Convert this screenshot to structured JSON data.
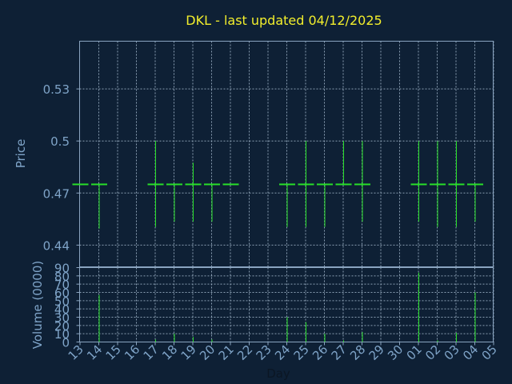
{
  "chart_data": {
    "type": "ohlc",
    "title": "DKL - last updated 04/12/2025",
    "xlabel": "Day",
    "price_panel": {
      "ylabel": "Price",
      "yticks": [
        0.44,
        0.47,
        0.5,
        0.53
      ],
      "ytick_labels": [
        "0.44",
        "0.47",
        "0.5",
        "0.53"
      ],
      "ylim": [
        0.4275,
        0.5575
      ]
    },
    "volume_panel": {
      "ylabel": "Volume (0000)",
      "yticks": [
        0,
        10,
        20,
        30,
        40,
        50,
        60,
        70,
        80,
        90
      ],
      "ylim": [
        0,
        90
      ]
    },
    "x_tick_labels": [
      "13",
      "14",
      "15",
      "16",
      "17",
      "18",
      "19",
      "20",
      "21",
      "22",
      "23",
      "24",
      "25",
      "26",
      "27",
      "28",
      "29",
      "30",
      "01",
      "02",
      "03",
      "04",
      "05"
    ],
    "grid": true,
    "bar_color": "#28e028",
    "candles": [
      {
        "day": "13",
        "open": 0.475,
        "high": 0.475,
        "low": 0.475,
        "close": 0.475,
        "volume": 0
      },
      {
        "day": "14",
        "open": 0.475,
        "high": 0.475,
        "low": 0.4495,
        "close": 0.475,
        "volume": 57
      },
      {
        "day": "17",
        "open": 0.475,
        "high": 0.5,
        "low": 0.4505,
        "close": 0.475,
        "volume": 3
      },
      {
        "day": "18",
        "open": 0.475,
        "high": 0.475,
        "low": 0.4535,
        "close": 0.475,
        "volume": 10
      },
      {
        "day": "19",
        "open": 0.475,
        "high": 0.4875,
        "low": 0.4535,
        "close": 0.475,
        "volume": 6
      },
      {
        "day": "20",
        "open": 0.475,
        "high": 0.475,
        "low": 0.4535,
        "close": 0.475,
        "volume": 3
      },
      {
        "day": "21",
        "open": 0.475,
        "high": 0.475,
        "low": 0.475,
        "close": 0.475,
        "volume": 0
      },
      {
        "day": "24",
        "open": 0.475,
        "high": 0.475,
        "low": 0.4505,
        "close": 0.475,
        "volume": 30
      },
      {
        "day": "25",
        "open": 0.475,
        "high": 0.5,
        "low": 0.4505,
        "close": 0.475,
        "volume": 24
      },
      {
        "day": "26",
        "open": 0.475,
        "high": 0.475,
        "low": 0.4505,
        "close": 0.475,
        "volume": 10
      },
      {
        "day": "27",
        "open": 0.475,
        "high": 0.5,
        "low": 0.475,
        "close": 0.475,
        "volume": 2
      },
      {
        "day": "28",
        "open": 0.475,
        "high": 0.5,
        "low": 0.4535,
        "close": 0.475,
        "volume": 12
      },
      {
        "day": "01",
        "open": 0.475,
        "high": 0.5,
        "low": 0.4535,
        "close": 0.475,
        "volume": 84
      },
      {
        "day": "02",
        "open": 0.475,
        "high": 0.5,
        "low": 0.4505,
        "close": 0.475,
        "volume": 2
      },
      {
        "day": "03",
        "open": 0.475,
        "high": 0.5,
        "low": 0.4505,
        "close": 0.475,
        "volume": 11
      },
      {
        "day": "04",
        "open": 0.475,
        "high": 0.475,
        "low": 0.4535,
        "close": 0.475,
        "volume": 60
      }
    ]
  }
}
